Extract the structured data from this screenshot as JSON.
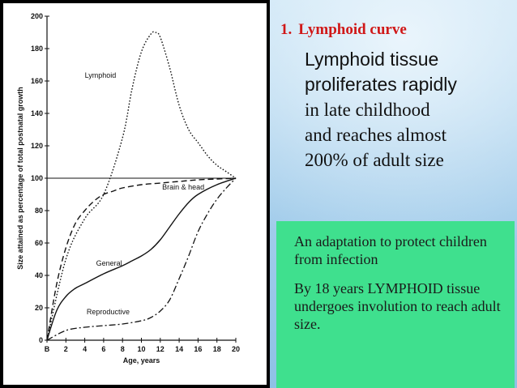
{
  "slide": {
    "heading_number": "1.",
    "heading_text": "Lymphoid curve",
    "description_lines": [
      "Lymphoid tissue",
      "proliferates rapidly",
      "in late childhood",
      "and reaches almost",
      "200% of adult size"
    ],
    "note_paragraphs": [
      "An adaptation to protect children from infection",
      "By 18 years LYMPHOID tissue undergoes involution to reach adult size."
    ],
    "colors": {
      "heading": "#d01818",
      "note_box": "#3fe08e",
      "background": "#a9d0ec",
      "plot_background": "#ffffff"
    }
  },
  "chart_data": {
    "type": "line",
    "title": "",
    "xlabel": "Age, years",
    "ylabel": "Size attained as percentage of total postnatal growth",
    "xlim": [
      0,
      20
    ],
    "ylim": [
      0,
      200
    ],
    "x_ticks": [
      "B",
      "2",
      "4",
      "6",
      "8",
      "10",
      "12",
      "14",
      "16",
      "18",
      "20"
    ],
    "x_tick_values": [
      0,
      2,
      4,
      6,
      8,
      10,
      12,
      14,
      16,
      18,
      20
    ],
    "y_ticks": [
      "0",
      "20",
      "40",
      "60",
      "80",
      "100",
      "120",
      "140",
      "160",
      "180",
      "200"
    ],
    "y_tick_values": [
      0,
      20,
      40,
      60,
      80,
      100,
      120,
      140,
      160,
      180,
      200
    ],
    "grid": false,
    "series": [
      {
        "name": "Lymphoid",
        "style": "dotted",
        "x": [
          0,
          2,
          4,
          6,
          8,
          9,
          10,
          11,
          11.5,
          12,
          13,
          14,
          15,
          16,
          17,
          18,
          19,
          20
        ],
        "y": [
          0,
          50,
          75,
          90,
          125,
          155,
          178,
          189,
          190,
          187,
          168,
          145,
          130,
          122,
          114,
          108,
          104,
          100
        ]
      },
      {
        "name": "Brain & head",
        "style": "dashed",
        "x": [
          0,
          1,
          2,
          3,
          4,
          5,
          6,
          7,
          8,
          10,
          12,
          14,
          16,
          18,
          20
        ],
        "y": [
          0,
          34,
          57,
          72,
          80,
          86,
          90,
          92,
          94,
          96,
          97,
          98,
          99,
          99.5,
          100
        ]
      },
      {
        "name": "General",
        "style": "solid",
        "x": [
          0,
          1,
          2,
          3,
          4,
          6,
          8,
          9,
          10,
          11,
          12,
          13,
          14,
          15,
          16,
          18,
          20
        ],
        "y": [
          0,
          18,
          27,
          32,
          35,
          41,
          46,
          49,
          52,
          56,
          62,
          70,
          78,
          85,
          90,
          96,
          100
        ]
      },
      {
        "name": "Reproductive",
        "style": "dashdot",
        "x": [
          0,
          2,
          4,
          6,
          8,
          10,
          11,
          12,
          13,
          14,
          15,
          16,
          17,
          18,
          19,
          20
        ],
        "y": [
          0,
          6,
          8,
          9,
          10,
          12,
          14,
          18,
          25,
          38,
          52,
          67,
          78,
          87,
          94,
          100
        ]
      }
    ],
    "annotations": [
      "Lymphoid",
      "Brain & head",
      "General",
      "Reproductive"
    ]
  }
}
